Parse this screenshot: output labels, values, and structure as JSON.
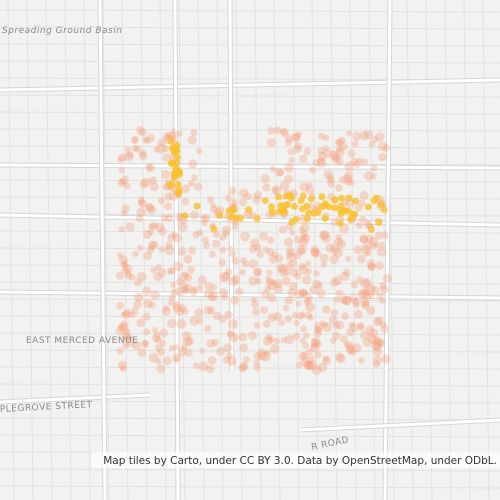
{
  "map": {
    "labels": {
      "basin": "Spreading Ground Basin",
      "avenue": "EAST MERCED AVENUE",
      "street": "PLEGROVE STREET",
      "road": "R ROAD"
    },
    "attribution": "Map tiles by Carto, under CC BY 3.0. Data by OpenStreetMap, under ODbL."
  }
}
